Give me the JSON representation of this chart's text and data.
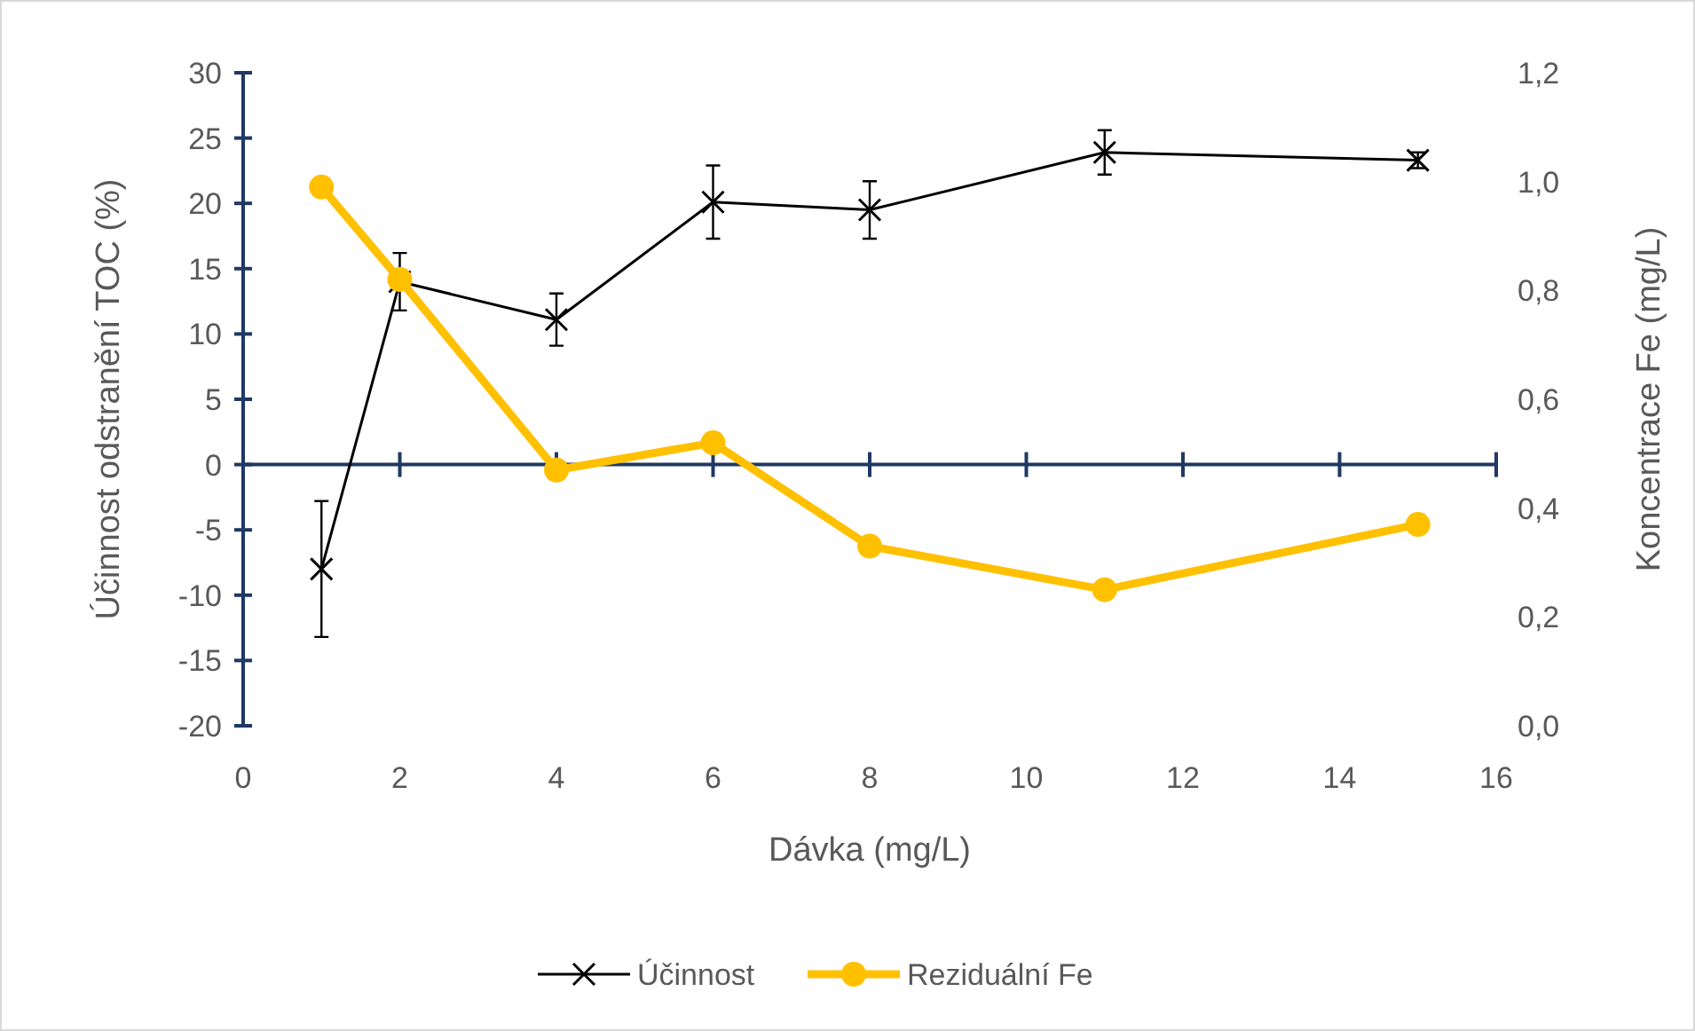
{
  "chart_data": {
    "type": "line",
    "xlabel": "Dávka (mg/L)",
    "ylabel": "Účinnost odstranění TOC (%)",
    "y2label": "Koncentrace Fe (mg/L)",
    "xlim": [
      0,
      16
    ],
    "xticks": [
      0,
      2,
      4,
      6,
      8,
      10,
      12,
      14,
      16
    ],
    "ylim": [
      -20,
      30
    ],
    "yticks": [
      -20,
      -15,
      -10,
      -5,
      0,
      5,
      10,
      15,
      20,
      25,
      30
    ],
    "y2lim": [
      0,
      1.2
    ],
    "y2ticks": [
      {
        "value": 0,
        "label": "0,0"
      },
      {
        "value": 0.2,
        "label": "0,2"
      },
      {
        "value": 0.4,
        "label": "0,4"
      },
      {
        "value": 0.6,
        "label": "0,6"
      },
      {
        "value": 0.8,
        "label": "0,8"
      },
      {
        "value": 1,
        "label": "1,0"
      },
      {
        "value": 1.2,
        "label": "1,2"
      }
    ],
    "x": [
      1,
      2,
      4,
      6,
      8,
      11,
      15
    ],
    "legend": "bottom",
    "ref_lines": [
      {
        "axis": "y",
        "value": 0,
        "color": "#1f3864"
      }
    ],
    "series": [
      {
        "name": "Účinnost",
        "color": "#000000",
        "marker": "cross",
        "values": [
          -8,
          14,
          11.1,
          20.1,
          19.5,
          23.9,
          23.3
        ],
        "errors": [
          5.2,
          2.2,
          2,
          2.8,
          2.2,
          1.7,
          0.6
        ]
      },
      {
        "name": "Reziduální Fe",
        "color": "#ffc000",
        "marker": "circle",
        "axis": "y2",
        "values": [
          0.99,
          0.82,
          0.47,
          0.52,
          0.33,
          0.25,
          0.37
        ]
      }
    ]
  }
}
